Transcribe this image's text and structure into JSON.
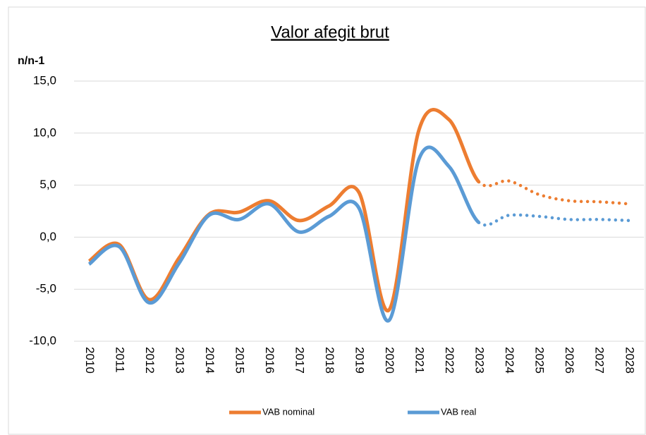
{
  "chart_data": {
    "type": "line",
    "title": "Valor afegit brut",
    "y_label": "n/n-1",
    "x": [
      "2010",
      "2011",
      "2012",
      "2013",
      "2014",
      "2015",
      "2016",
      "2017",
      "2018",
      "2019",
      "2020",
      "2021",
      "2022",
      "2023",
      "2024",
      "2025",
      "2026",
      "2027",
      "2028"
    ],
    "projection_start": "2023",
    "series": [
      {
        "name": "VAB nominal",
        "color": "#ed7d31",
        "values": [
          -2.3,
          -0.7,
          -6.0,
          -2.0,
          2.2,
          2.4,
          3.5,
          1.6,
          3.0,
          4.3,
          -7.0,
          10.3,
          11.3,
          5.3,
          5.4,
          4.1,
          3.5,
          3.4,
          3.2
        ]
      },
      {
        "name": "VAB real",
        "color": "#5b9bd5",
        "values": [
          -2.6,
          -0.9,
          -6.3,
          -2.5,
          2.1,
          1.7,
          3.2,
          0.5,
          2.0,
          2.8,
          -8.0,
          7.5,
          6.8,
          1.4,
          2.1,
          2.0,
          1.7,
          1.7,
          1.6
        ]
      }
    ],
    "ylim": [
      -10,
      15
    ],
    "yticks": [
      {
        "value": -10,
        "label": "-10,0"
      },
      {
        "value": -5,
        "label": "-5,0"
      },
      {
        "value": 0,
        "label": "0,0"
      },
      {
        "value": 5,
        "label": "5,0"
      },
      {
        "value": 10,
        "label": "10,0"
      },
      {
        "value": 15,
        "label": "15,0"
      }
    ],
    "grid": true,
    "legend": "bottom"
  }
}
